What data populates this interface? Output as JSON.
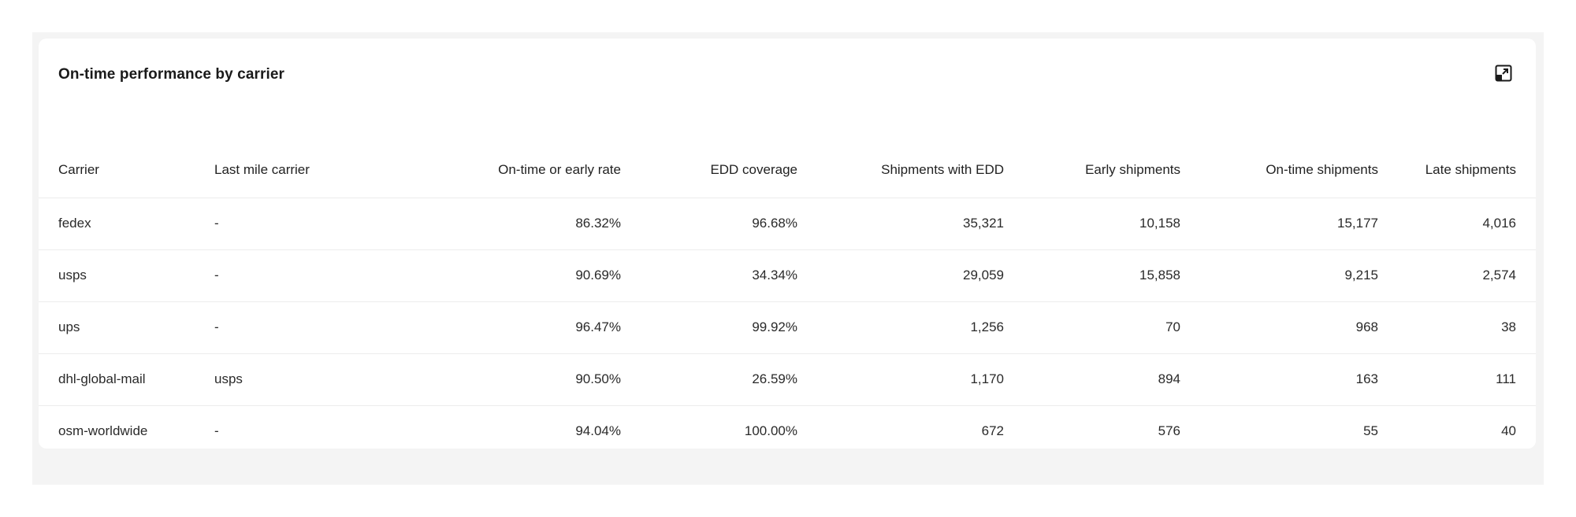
{
  "card": {
    "title": "On-time performance by carrier",
    "expand_icon": "expand-arrow-icon"
  },
  "table": {
    "columns": [
      "Carrier",
      "Last mile carrier",
      "On-time or early rate",
      "EDD coverage",
      "Shipments with EDD",
      "Early shipments",
      "On-time shipments",
      "Late shipments"
    ],
    "rows": [
      [
        "fedex",
        "-",
        "86.32%",
        "96.68%",
        "35,321",
        "10,158",
        "15,177",
        "4,016"
      ],
      [
        "usps",
        "-",
        "90.69%",
        "34.34%",
        "29,059",
        "15,858",
        "9,215",
        "2,574"
      ],
      [
        "ups",
        "-",
        "96.47%",
        "99.92%",
        "1,256",
        "70",
        "968",
        "38"
      ],
      [
        "dhl-global-mail",
        "usps",
        "90.50%",
        "26.59%",
        "1,170",
        "894",
        "163",
        "111"
      ],
      [
        "osm-worldwide",
        "-",
        "94.04%",
        "100.00%",
        "672",
        "576",
        "55",
        "40"
      ]
    ]
  }
}
